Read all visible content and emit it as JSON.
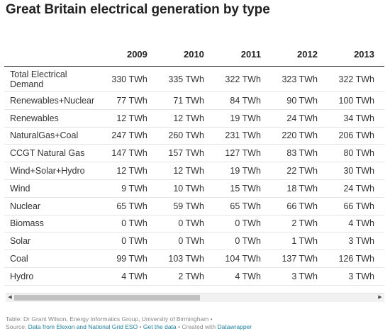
{
  "title": "Great Britain electrical generation by type",
  "columns": [
    "",
    "2009",
    "2010",
    "2011",
    "2012",
    "2013"
  ],
  "rows": [
    {
      "label": "Total Electrical Demand",
      "values": [
        "330 TWh",
        "335 TWh",
        "322 TWh",
        "323 TWh",
        "322 TWh"
      ]
    },
    {
      "label": "Renewables+Nuclear",
      "values": [
        "77 TWh",
        "71 TWh",
        "84 TWh",
        "90 TWh",
        "100 TWh"
      ]
    },
    {
      "label": "Renewables",
      "values": [
        "12 TWh",
        "12 TWh",
        "19 TWh",
        "24 TWh",
        "34 TWh"
      ]
    },
    {
      "label": "NaturalGas+Coal",
      "values": [
        "247 TWh",
        "260 TWh",
        "231 TWh",
        "220 TWh",
        "206 TWh"
      ]
    },
    {
      "label": "CCGT Natural Gas",
      "values": [
        "147 TWh",
        "157 TWh",
        "127 TWh",
        "83 TWh",
        "80 TWh"
      ]
    },
    {
      "label": "Wind+Solar+Hydro",
      "values": [
        "12 TWh",
        "12 TWh",
        "19 TWh",
        "22 TWh",
        "30 TWh"
      ]
    },
    {
      "label": "Wind",
      "values": [
        "9 TWh",
        "10 TWh",
        "15 TWh",
        "18 TWh",
        "24 TWh"
      ]
    },
    {
      "label": "Nuclear",
      "values": [
        "65 TWh",
        "59 TWh",
        "65 TWh",
        "66 TWh",
        "66 TWh"
      ]
    },
    {
      "label": "Biomass",
      "values": [
        "0 TWh",
        "0 TWh",
        "0 TWh",
        "2 TWh",
        "4 TWh"
      ]
    },
    {
      "label": "Solar",
      "values": [
        "0 TWh",
        "0 TWh",
        "0 TWh",
        "1 TWh",
        "3 TWh"
      ]
    },
    {
      "label": "Coal",
      "values": [
        "99 TWh",
        "103 TWh",
        "104 TWh",
        "137 TWh",
        "126 TWh"
      ]
    },
    {
      "label": "Hydro",
      "values": [
        "4 TWh",
        "2 TWh",
        "4 TWh",
        "3 TWh",
        "3 TWh"
      ]
    }
  ],
  "scrollbar": {
    "left_arrow": "◀",
    "right_arrow": "▶"
  },
  "footer": {
    "line1": "Table: Dr Grant Wilson, Energy Informatics Group, University of Birmingham •",
    "source_prefix": "Source: ",
    "source_link": "Data from Elexon and National Grid ESO",
    "separator1": " • ",
    "get_data": "Get the data",
    "separator2": " • Created with ",
    "datawrapper": "Datawrapper"
  }
}
